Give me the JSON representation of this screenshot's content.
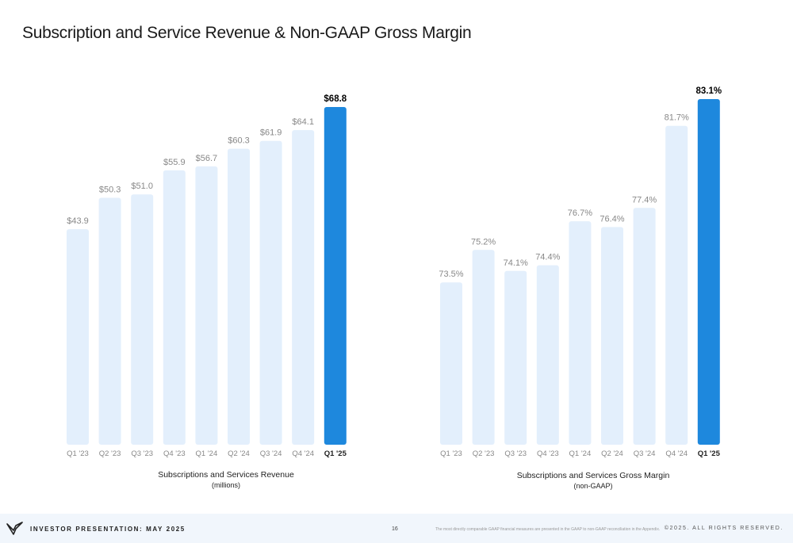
{
  "title": "Subscription and Service Revenue & Non-GAAP Gross Margin",
  "colors": {
    "bar_light": "#e3effc",
    "bar_highlight": "#1e88dd",
    "label_muted": "#888888",
    "label_strong": "#000000"
  },
  "chart_data": [
    {
      "type": "bar",
      "categories": [
        "Q1 '23",
        "Q2 '23",
        "Q3 '23",
        "Q4 '23",
        "Q1 '24",
        "Q2 '24",
        "Q3 '24",
        "Q4 '24",
        "Q1 '25"
      ],
      "values": [
        43.9,
        50.3,
        51.0,
        55.9,
        56.7,
        60.3,
        61.9,
        64.1,
        68.8
      ],
      "data_labels": [
        "$43.9",
        "$50.3",
        "$51.0",
        "$55.9",
        "$56.7",
        "$60.3",
        "$61.9",
        "$64.1",
        "$68.8"
      ],
      "highlight_index": 8,
      "ylim": [
        0,
        70
      ],
      "xlabel": "Subscriptions and Services Revenue",
      "xlabel_sub": "(millions)",
      "grid": false
    },
    {
      "type": "bar",
      "categories": [
        "Q1 '23",
        "Q2 '23",
        "Q3 '23",
        "Q4 '23",
        "Q1 '24",
        "Q2 '24",
        "Q3 '24",
        "Q4 '24",
        "Q1 '25"
      ],
      "values": [
        73.5,
        75.2,
        74.1,
        74.4,
        76.7,
        76.4,
        77.4,
        81.7,
        83.1
      ],
      "data_labels": [
        "73.5%",
        "75.2%",
        "74.1%",
        "74.4%",
        "76.7%",
        "76.4%",
        "77.4%",
        "81.7%",
        "83.1%"
      ],
      "highlight_index": 8,
      "ylim": [
        65,
        84
      ],
      "xlabel": "Subscriptions and Services Gross Margin",
      "xlabel_sub": "(non-GAAP)",
      "grid": false
    }
  ],
  "footer": {
    "presentation": "INVESTOR PRESENTATION: MAY 2025",
    "page": "16",
    "note": "The most directly comparable GAAP financial measures are presented in the GAAP to non-GAAP reconciliation in the Appendix.",
    "rights": "©2025.  ALL RIGHTS RESERVED.",
    "logo_icon": "company-logo-icon"
  }
}
